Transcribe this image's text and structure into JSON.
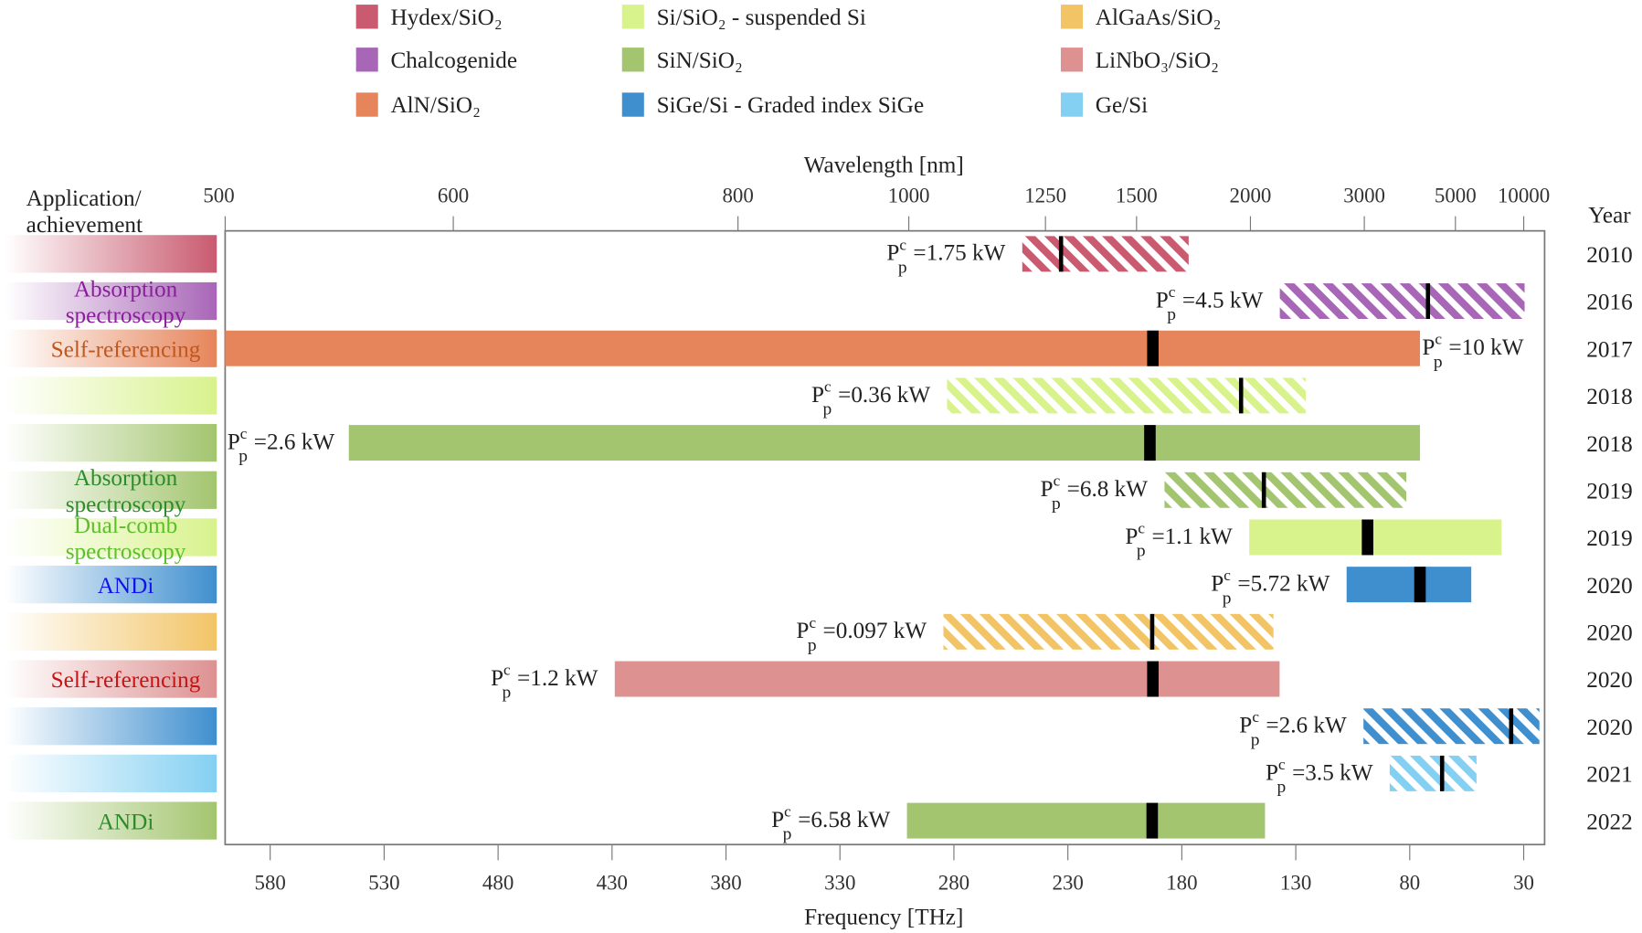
{
  "chart_data": {
    "type": "bar",
    "subtype": "horizontal-range (Gantt-style) timeline",
    "top_axis": {
      "label": "Wavelength [nm]",
      "ticks": [
        "500",
        "600",
        "800",
        "1000",
        "1250",
        "1500",
        "2000",
        "3000",
        "5000",
        "10000"
      ],
      "tick_values_nm": [
        500,
        600,
        800,
        1000,
        1250,
        1500,
        2000,
        3000,
        5000,
        10000
      ]
    },
    "bottom_axis": {
      "label": "Frequency [THz]",
      "ticks": [
        "580",
        "530",
        "480",
        "430",
        "380",
        "330",
        "280",
        "230",
        "180",
        "130",
        "80",
        "30"
      ],
      "tick_values_thz": [
        580,
        530,
        480,
        430,
        380,
        330,
        280,
        230,
        180,
        130,
        80,
        30
      ],
      "xlim_thz": [
        600,
        21
      ]
    },
    "left_header": [
      "Application/",
      "achievement"
    ],
    "right_header": "Year",
    "power_symbol": {
      "base": "P",
      "sup": "c",
      "sub": "p"
    },
    "legend": [
      {
        "name": "Hydex/SiO₂",
        "color": "#c95a6f"
      },
      {
        "name": "Chalcogenide",
        "color": "#a866b7"
      },
      {
        "name": "AlN/SiO₂",
        "color": "#e6855b"
      },
      {
        "name": "Si/SiO₂ - suspended Si",
        "color": "#d8f28c"
      },
      {
        "name": "SiN/SiO₂",
        "color": "#a3c56f"
      },
      {
        "name": "SiGe/Si - Graded index SiGe",
        "color": "#3f8fcf"
      },
      {
        "name": "AlGaAs/SiO₂",
        "color": "#f2c466"
      },
      {
        "name": "LiNbO₃/SiO₂",
        "color": "#dd9191"
      },
      {
        "name": "Ge/Si",
        "color": "#84d0f2"
      }
    ],
    "rows": [
      {
        "platform": "Hydex/SiO₂",
        "color": "#c95a6f",
        "hatched": true,
        "start_thz": 250,
        "end_thz": 177,
        "pump_thz": 233,
        "power": "=1.75 kW",
        "label_side": "left",
        "year": "2010",
        "application": [],
        "app_color": "#000000"
      },
      {
        "platform": "Chalcogenide",
        "color": "#a866b7",
        "hatched": true,
        "start_thz": 137,
        "end_thz": 29.6,
        "pump_thz": 72,
        "power": "=4.5 kW",
        "label_side": "left",
        "year": "2016",
        "application": [
          "Absorption",
          "spectroscopy"
        ],
        "app_color": "#8a1e9c"
      },
      {
        "platform": "AlN/SiO₂",
        "color": "#e6855b",
        "hatched": false,
        "start_thz": 600,
        "end_thz": 75.5,
        "pump_thz": 192.7,
        "power": "=10 kW",
        "label_side": "right",
        "year": "2017",
        "application": [
          "Self-referencing"
        ],
        "app_color": "#c0571d"
      },
      {
        "platform": "Si/SiO₂ - suspended Si",
        "color": "#d8f28c",
        "hatched": true,
        "start_thz": 283,
        "end_thz": 125.6,
        "pump_thz": 154,
        "power": "=0.36 kW",
        "label_side": "left",
        "year": "2018",
        "application": [],
        "app_color": "#000000"
      },
      {
        "platform": "SiN/SiO₂",
        "color": "#a3c56f",
        "hatched": false,
        "start_thz": 545.5,
        "end_thz": 75.5,
        "pump_thz": 194,
        "power": "=2.6 kW",
        "label_side": "left",
        "year": "2018",
        "application": [],
        "app_color": "#000000"
      },
      {
        "platform": "SiN/SiO₂",
        "color": "#a3c56f",
        "hatched": true,
        "start_thz": 187.6,
        "end_thz": 81.5,
        "pump_thz": 144,
        "power": "=6.8 kW",
        "label_side": "left",
        "year": "2019",
        "application": [
          "Absorption",
          "spectroscopy"
        ],
        "app_color": "#2c8c2c"
      },
      {
        "platform": "Si/SiO₂ - suspended Si",
        "color": "#d8f28c",
        "hatched": false,
        "start_thz": 150.4,
        "end_thz": 39.7,
        "pump_thz": 98.5,
        "power": "=1.1 kW",
        "label_side": "left",
        "year": "2019",
        "application": [
          "Dual-comb",
          "spectroscopy"
        ],
        "app_color": "#5cbf2a"
      },
      {
        "platform": "SiGe/Si - Graded index SiGe",
        "color": "#3f8fcf",
        "hatched": false,
        "start_thz": 107.7,
        "end_thz": 53,
        "pump_thz": 75.5,
        "power": "=5.72 kW",
        "label_side": "left",
        "year": "2020",
        "application": [
          "ANDi"
        ],
        "app_color": "#1212ee"
      },
      {
        "platform": "AlGaAs/SiO₂",
        "color": "#f2c466",
        "hatched": true,
        "start_thz": 284.6,
        "end_thz": 139.8,
        "pump_thz": 193,
        "power": "=0.097 kW",
        "label_side": "left",
        "year": "2020",
        "application": [],
        "app_color": "#000000"
      },
      {
        "platform": "LiNbO₃/SiO₂",
        "color": "#dd9191",
        "hatched": false,
        "start_thz": 428.8,
        "end_thz": 137.1,
        "pump_thz": 192.7,
        "power": "=1.2 kW",
        "label_side": "left",
        "year": "2020",
        "application": [
          "Self-referencing"
        ],
        "app_color": "#c81414"
      },
      {
        "platform": "SiGe/Si - Graded index SiGe",
        "color": "#3f8fcf",
        "hatched": true,
        "start_thz": 100.3,
        "end_thz": 23.1,
        "pump_thz": 35.5,
        "power": "=2.6 kW",
        "label_side": "left",
        "year": "2020",
        "application": [],
        "app_color": "#000000"
      },
      {
        "platform": "Ge/Si",
        "color": "#84d0f2",
        "hatched": true,
        "start_thz": 88.8,
        "end_thz": 50.7,
        "pump_thz": 65.8,
        "power": "=3.5 kW",
        "label_side": "left",
        "year": "2021",
        "application": [],
        "app_color": "#000000"
      },
      {
        "platform": "SiN/SiO₂",
        "color": "#a3c56f",
        "hatched": false,
        "start_thz": 300.6,
        "end_thz": 143.5,
        "pump_thz": 193,
        "power": "=6.58 kW",
        "label_side": "left",
        "year": "2022",
        "application": [
          "ANDi"
        ],
        "app_color": "#2c8c2c"
      }
    ]
  }
}
